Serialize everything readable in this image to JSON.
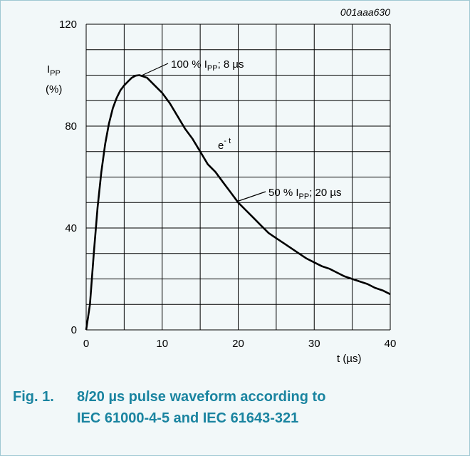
{
  "figure_code": "001aaa630",
  "caption": {
    "number": "Fig. 1.",
    "line1": "8/20 µs pulse waveform according to",
    "line2": "IEC 61000-4-5 and IEC 61643-321"
  },
  "colors": {
    "caption": "#1a84a0",
    "background": "#f2f8f9",
    "frame": "#9fc8d2",
    "grid": "#000000",
    "curve": "#000000"
  },
  "chart_data": {
    "type": "line",
    "title": "",
    "ylabel_main": "I",
    "ylabel_sub": "PP",
    "ylabel_unit": "(%)",
    "xlabel": "t (µs)",
    "xlim": [
      0,
      40
    ],
    "ylim": [
      0,
      120
    ],
    "xticks": [
      0,
      10,
      20,
      30,
      40
    ],
    "yticks": [
      0,
      40,
      80,
      120
    ],
    "grid": true,
    "grid_step_x": 5,
    "grid_step_y": 10,
    "series": [
      {
        "x": [
          0,
          0.5,
          1,
          1.5,
          2,
          2.5,
          3,
          3.5,
          4,
          4.5,
          5,
          5.5,
          6,
          6.5,
          7,
          7.5,
          8,
          9,
          10,
          11,
          12,
          13,
          14,
          15,
          16,
          17,
          18,
          19,
          20,
          21,
          22,
          23,
          24,
          25,
          26,
          27,
          28,
          29,
          30,
          31,
          32,
          33,
          34,
          35,
          36,
          37,
          38,
          39,
          40
        ],
        "y": [
          0,
          10,
          30,
          48,
          62,
          73,
          81,
          87,
          91,
          94,
          96,
          97.5,
          99,
          99.8,
          100,
          99.5,
          99,
          96,
          93,
          89,
          84,
          79,
          75,
          70,
          65,
          62,
          58,
          54,
          50,
          47,
          44,
          41,
          38,
          36,
          34,
          32,
          30,
          28,
          26.5,
          25,
          24,
          22.5,
          21,
          20,
          19,
          18,
          16.5,
          15.5,
          14
        ]
      }
    ],
    "annotations": [
      {
        "label": "100 % I",
        "sub": "PP",
        "suffix": "; 8 µs",
        "x": 7,
        "y": 100
      },
      {
        "label": "e",
        "sup": "- t",
        "x": 15,
        "y": 72
      },
      {
        "label": "50 % I",
        "sub": "PP",
        "suffix": "; 20 µs",
        "x": 20,
        "y": 50
      }
    ]
  }
}
